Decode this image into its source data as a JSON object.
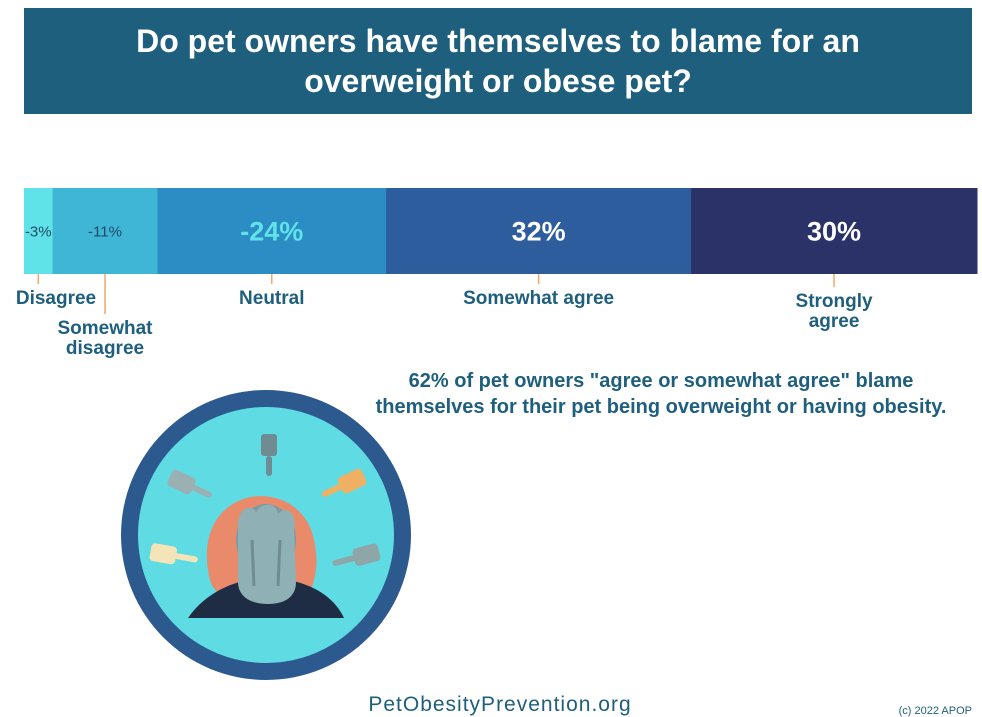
{
  "title": "Do pet owners have themselves to blame for an overweight or obese pet?",
  "statement": "62% of pet owners \"agree or somewhat agree\" blame themselves for their pet being overweight or having obesity.",
  "footer": {
    "site": "PetObesityPrevention.org",
    "copyright": "(c) 2022 APOP"
  },
  "colors": {
    "banner": "#1f5f7e",
    "label_text": "#1f5f7e",
    "leader": "#f0a868",
    "circle_ring": "#2d5a8e",
    "circle_fill": "#5fdbe4"
  },
  "chart_data": {
    "type": "bar",
    "stacked": true,
    "orientation": "horizontal",
    "categories": [
      "Disagree",
      "Somewhat disagree",
      "Neutral",
      "Somewhat agree",
      "Strongly agree"
    ],
    "values": [
      3,
      11,
      24,
      32,
      30
    ],
    "value_labels": [
      "-3%",
      "-11%",
      "-24%",
      "32%",
      "30%"
    ],
    "segment_colors": [
      "#5fe3e8",
      "#3fb6d6",
      "#2b8dc4",
      "#2d5d9c",
      "#2a3268"
    ],
    "value_label_colors": [
      "#1f4a66",
      "#1f4a66",
      "#5fe3e8",
      "#ffffff",
      "#ffffff"
    ],
    "category_labels": [
      [
        "Disagree"
      ],
      [
        "Somewhat",
        "disagree"
      ],
      [
        "Neutral"
      ],
      [
        "Somewhat agree"
      ],
      [
        "Strongly",
        "agree"
      ]
    ]
  }
}
